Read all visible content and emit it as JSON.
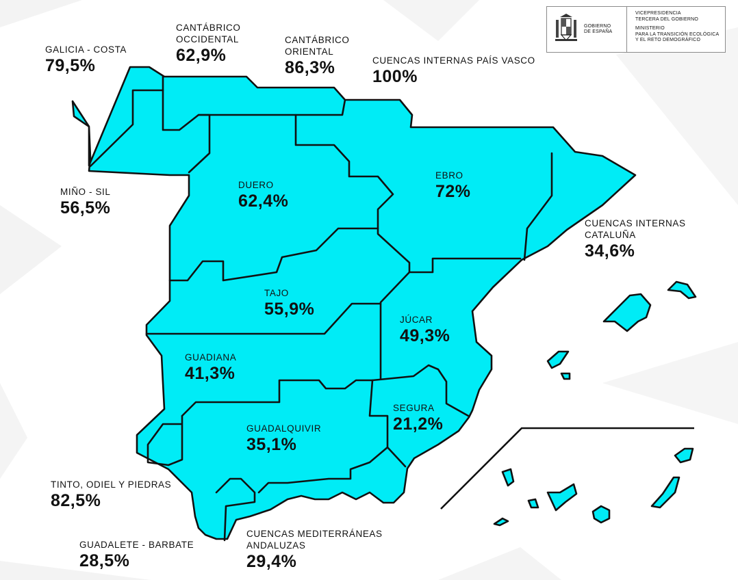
{
  "header": {
    "government": [
      "GOBIERNO",
      "DE ESPAÑA"
    ],
    "office": [
      "VICEPRESIDENCIA",
      "TERCERA DEL GOBIERNO"
    ],
    "ministry": [
      "MINISTERIO",
      "PARA LA TRANSICIÓN ECOLÓGICA",
      "Y EL RETO DEMOGRÁFICO"
    ]
  },
  "basins": [
    {
      "name": "GALICIA - COSTA",
      "value": "79,5%"
    },
    {
      "name": "CANTÁBRICO\nOCCIDENTAL",
      "value": "62,9%"
    },
    {
      "name": "CANTÁBRICO\nORIENTAL",
      "value": "86,3%"
    },
    {
      "name": "CUENCAS INTERNAS PAÍS VASCO",
      "value": "100%"
    },
    {
      "name": "MIÑO - SIL",
      "value": "56,5%"
    },
    {
      "name": "DUERO",
      "value": "62,4%"
    },
    {
      "name": "EBRO",
      "value": "72%"
    },
    {
      "name": "CUENCAS INTERNAS\nCATALUÑA",
      "value": "34,6%"
    },
    {
      "name": "TAJO",
      "value": "55,9%"
    },
    {
      "name": "JÚCAR",
      "value": "49,3%"
    },
    {
      "name": "GUADIANA",
      "value": "41,3%"
    },
    {
      "name": "GUADALQUIVIR",
      "value": "35,1%"
    },
    {
      "name": "SEGURA",
      "value": "21,2%"
    },
    {
      "name": "TINTO, ODIEL Y PIEDRAS",
      "value": "82,5%"
    },
    {
      "name": "GUADALETE - BARBATE",
      "value": "28,5%"
    },
    {
      "name": "CUENCAS MEDITERRÁNEAS ANDALUZAS",
      "value": "29,4%"
    }
  ],
  "colors": {
    "fill": "#00ecf6",
    "stroke": "#111111",
    "text": "#111111",
    "background_shapes": "#f1f1f1"
  }
}
